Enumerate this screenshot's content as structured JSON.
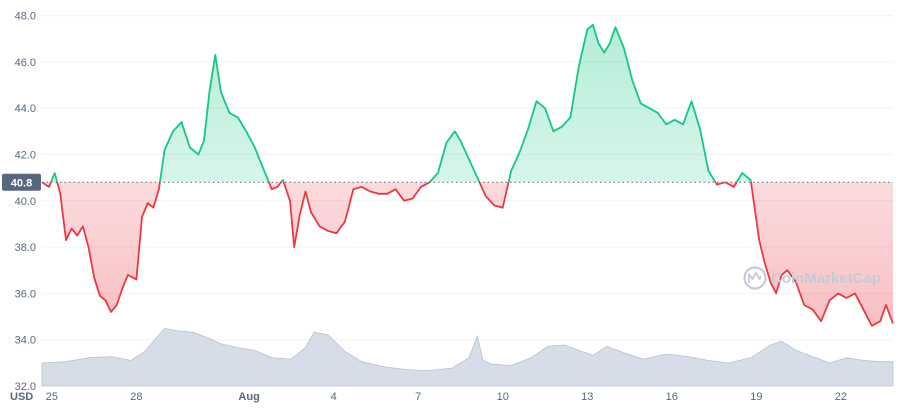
{
  "chart_data": {
    "type": "line",
    "currency_label": "USD",
    "reference_value": 40.8,
    "reference_label": "40.8",
    "ylim": [
      32.0,
      48.5
    ],
    "y_ticks": [
      {
        "value": 32.0,
        "label": "32.0"
      },
      {
        "value": 34.0,
        "label": "34.0"
      },
      {
        "value": 36.0,
        "label": "36.0"
      },
      {
        "value": 38.0,
        "label": "38.0"
      },
      {
        "value": 40.0,
        "label": "40.0"
      },
      {
        "value": 42.0,
        "label": "42.0"
      },
      {
        "value": 44.0,
        "label": "44.0"
      },
      {
        "value": 46.0,
        "label": "46.0"
      },
      {
        "value": 48.0,
        "label": "48.0"
      }
    ],
    "xlim": [
      24.65,
      54.85
    ],
    "x_ticks": [
      {
        "value": 25,
        "label": "25",
        "bold": false
      },
      {
        "value": 28,
        "label": "28",
        "bold": false
      },
      {
        "value": 32,
        "label": "Aug",
        "bold": true
      },
      {
        "value": 35,
        "label": "4",
        "bold": false
      },
      {
        "value": 38,
        "label": "7",
        "bold": false
      },
      {
        "value": 41,
        "label": "10",
        "bold": false
      },
      {
        "value": 44,
        "label": "13",
        "bold": false
      },
      {
        "value": 47,
        "label": "16",
        "bold": false
      },
      {
        "value": 50,
        "label": "19",
        "bold": false
      },
      {
        "value": 53,
        "label": "22",
        "bold": false
      }
    ],
    "up_color": "#16c784",
    "down_color": "#ea3943",
    "volume_color": "#cfd6e4",
    "watermark": "CoinMarketCap",
    "price": {
      "x": [
        24.65,
        24.9,
        25.1,
        25.3,
        25.5,
        25.7,
        25.9,
        26.1,
        26.3,
        26.5,
        26.7,
        26.9,
        27.1,
        27.3,
        27.5,
        27.7,
        27.85,
        28.0,
        28.2,
        28.4,
        28.6,
        28.8,
        29.0,
        29.3,
        29.6,
        29.9,
        30.2,
        30.4,
        30.6,
        30.8,
        31.0,
        31.3,
        31.6,
        31.9,
        32.2,
        32.5,
        32.8,
        33.0,
        33.2,
        33.45,
        33.6,
        33.8,
        34.0,
        34.2,
        34.5,
        34.8,
        35.1,
        35.4,
        35.7,
        36.0,
        36.3,
        36.6,
        36.9,
        37.2,
        37.5,
        37.8,
        38.1,
        38.4,
        38.7,
        39.0,
        39.3,
        39.5,
        39.8,
        40.1,
        40.4,
        40.7,
        41.0,
        41.3,
        41.6,
        41.9,
        42.2,
        42.5,
        42.8,
        43.1,
        43.4,
        43.7,
        44.0,
        44.2,
        44.4,
        44.6,
        44.8,
        45.0,
        45.3,
        45.6,
        45.9,
        46.2,
        46.5,
        46.8,
        47.1,
        47.4,
        47.7,
        48.0,
        48.3,
        48.6,
        48.9,
        49.2,
        49.5,
        49.8,
        50.1,
        50.3,
        50.5,
        50.7,
        50.9,
        51.1,
        51.4,
        51.7,
        52.0,
        52.3,
        52.6,
        52.9,
        53.2,
        53.5,
        53.8,
        54.1,
        54.4,
        54.6,
        54.85
      ],
      "y": [
        40.8,
        40.6,
        41.2,
        40.3,
        38.3,
        38.8,
        38.5,
        38.9,
        38.0,
        36.7,
        35.9,
        35.7,
        35.2,
        35.5,
        36.2,
        36.8,
        36.7,
        36.6,
        39.3,
        39.9,
        39.7,
        40.5,
        42.2,
        43.0,
        43.4,
        42.3,
        42.0,
        42.6,
        44.8,
        46.3,
        44.7,
        43.8,
        43.6,
        43.0,
        42.3,
        41.4,
        40.5,
        40.6,
        40.9,
        40.0,
        38.0,
        39.4,
        40.4,
        39.5,
        38.9,
        38.7,
        38.6,
        39.1,
        40.5,
        40.6,
        40.4,
        40.3,
        40.3,
        40.5,
        40.0,
        40.1,
        40.6,
        40.8,
        41.2,
        42.5,
        43.0,
        42.6,
        41.8,
        41.0,
        40.2,
        39.8,
        39.7,
        41.3,
        42.1,
        43.1,
        44.3,
        44.0,
        43.0,
        43.2,
        43.6,
        45.8,
        47.4,
        47.6,
        46.8,
        46.4,
        46.8,
        47.5,
        46.6,
        45.2,
        44.2,
        44.0,
        43.8,
        43.3,
        43.5,
        43.3,
        44.3,
        43.1,
        41.3,
        40.7,
        40.8,
        40.6,
        41.2,
        40.9,
        38.3,
        37.3,
        36.5,
        36.0,
        36.8,
        37.0,
        36.5,
        35.5,
        35.3,
        34.8,
        35.7,
        36.0,
        35.8,
        36.0,
        35.3,
        34.6,
        34.8,
        35.5,
        34.7
      ]
    },
    "volume": {
      "x": [
        24.65,
        25.5,
        26.3,
        27.1,
        27.8,
        28.3,
        28.8,
        29.0,
        29.5,
        30.0,
        30.5,
        31.0,
        31.6,
        32.2,
        32.8,
        33.5,
        34.0,
        34.3,
        34.8,
        35.4,
        36.0,
        36.8,
        37.5,
        38.3,
        39.2,
        39.8,
        40.1,
        40.3,
        40.6,
        41.3,
        42.0,
        42.6,
        43.2,
        43.8,
        44.2,
        44.7,
        45.3,
        46.0,
        46.8,
        47.6,
        48.3,
        49.0,
        49.8,
        50.5,
        50.9,
        51.4,
        52.0,
        52.6,
        53.2,
        53.8,
        54.4,
        54.85
      ],
      "v": [
        0.18,
        0.19,
        0.22,
        0.23,
        0.2,
        0.27,
        0.4,
        0.45,
        0.43,
        0.42,
        0.38,
        0.33,
        0.3,
        0.28,
        0.22,
        0.21,
        0.3,
        0.42,
        0.4,
        0.27,
        0.19,
        0.15,
        0.13,
        0.12,
        0.14,
        0.22,
        0.39,
        0.2,
        0.17,
        0.16,
        0.22,
        0.31,
        0.32,
        0.27,
        0.24,
        0.31,
        0.26,
        0.21,
        0.25,
        0.23,
        0.2,
        0.18,
        0.22,
        0.32,
        0.35,
        0.28,
        0.23,
        0.18,
        0.22,
        0.2,
        0.19,
        0.19
      ]
    }
  }
}
